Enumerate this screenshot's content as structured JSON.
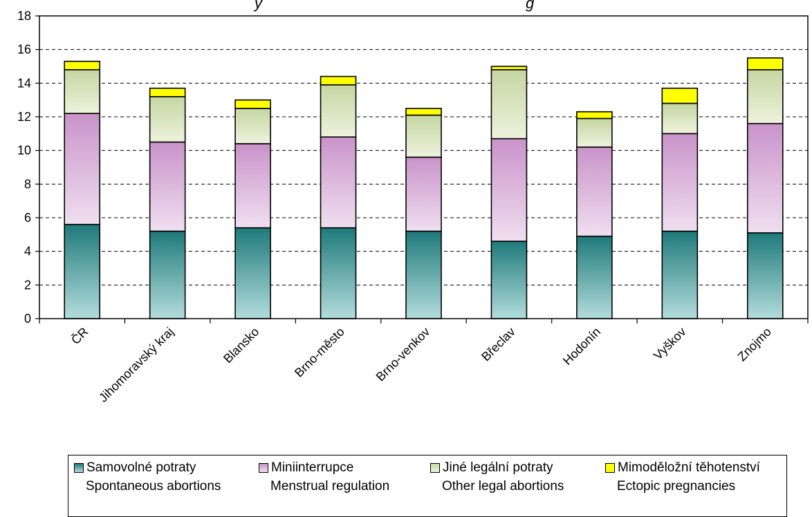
{
  "chart_data": {
    "type": "bar",
    "stacked": true,
    "title_fragments": [
      "y",
      "g"
    ],
    "ylim": [
      0,
      18
    ],
    "yticks": [
      "0",
      "2",
      "4",
      "6",
      "8",
      "10",
      "12",
      "14",
      "16",
      "18"
    ],
    "grid": true,
    "legend_position": "bottom",
    "categories": [
      "ČR",
      "Jihomoravský kraj",
      "Blansko",
      "Brno-město",
      "Brno-venkov",
      "Břeclav",
      "Hodonín",
      "Vyškov",
      "Znojmo"
    ],
    "series": [
      {
        "name": "Samovolné potraty",
        "name_en": "Spontaneous abortions",
        "values": [
          5.6,
          5.2,
          5.4,
          5.4,
          5.2,
          4.6,
          4.9,
          5.2,
          5.1
        ],
        "color_top": "#1f7a7a",
        "color_bottom": "#b3dcdc"
      },
      {
        "name": "Miniinterrupce",
        "name_en": "Menstrual regulation",
        "values": [
          6.6,
          5.3,
          5.0,
          5.4,
          4.4,
          6.1,
          5.3,
          5.8,
          6.5
        ],
        "color_top": "#c993c9",
        "color_bottom": "#f0dff0"
      },
      {
        "name": "Jiné legální potraty",
        "name_en": "Other legal abortions",
        "values": [
          2.6,
          2.7,
          2.1,
          3.1,
          2.5,
          4.1,
          1.7,
          1.8,
          3.2
        ],
        "color_top": "#c5d6a2",
        "color_bottom": "#eef2dc"
      },
      {
        "name": "Mimoděložní těhotenství",
        "name_en": "Ectopic pregnancies",
        "values": [
          0.5,
          0.5,
          0.5,
          0.5,
          0.4,
          0.2,
          0.4,
          0.9,
          0.7
        ],
        "color_top": "#ffff00",
        "color_bottom": "#ffff00"
      }
    ]
  }
}
